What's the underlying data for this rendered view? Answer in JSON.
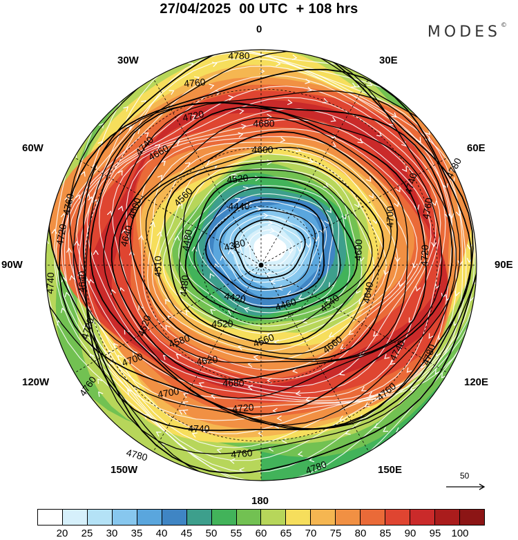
{
  "header": {
    "title": "27/04/2025  00 UTC  + 108 hrs",
    "brand": "MODES",
    "brand_mark": "©"
  },
  "map": {
    "projection": "north-polar-stereographic",
    "longitude_labels": {
      "lon_0": "0",
      "lon_30e": "30E",
      "lon_60e": "60E",
      "lon_90e": "90E",
      "lon_120e": "120E",
      "lon_150e": "150E",
      "lon_180": "180",
      "lon_150w": "150W",
      "lon_120w": "120W",
      "lon_90w": "90W",
      "lon_60w": "60W",
      "lon_30w": "30W"
    },
    "contour_labels": {
      "c4780_top": "4780",
      "c4760_top": "4760",
      "c4720_top": "4720",
      "c4740_tl": "4740",
      "c4680_top": "4680",
      "c4600_top": "4600",
      "c4660_tl": "4660",
      "c4560_tl": "4560",
      "c4520_top": "4520",
      "c4600_l": "4600",
      "c4640_l": "4640",
      "c4440_c": "4440",
      "c4480_l": "4480",
      "c4380_c": "4380",
      "c4760_l": "4760",
      "c4720_l": "4720",
      "c4740_l": "4740",
      "c4640_l2": "4640",
      "c4510_l": "4510",
      "c4480_l2": "4480",
      "c4420_c": "4420",
      "c4460_c": "4460",
      "c4720_ll": "4720",
      "c4620_l": "4620",
      "c4520_c": "4520",
      "c4540_c": "4540",
      "c4580_c": "4580",
      "c4560_c": "4560",
      "c4620_b": "4620",
      "c4700_b": "4700",
      "c4660_r": "4660",
      "c4760_ll": "4760",
      "c4680_b": "4680",
      "c4700_b2": "4700",
      "c4720_b": "4720",
      "c4740_b": "4740",
      "c4760_b": "4760",
      "c4780_bl": "4780",
      "c4780_b": "4780",
      "c4760_br": "4760",
      "c4740_r": "4740",
      "c4780_r": "4780",
      "c4640_r": "4640",
      "c4600_r": "4600",
      "c4700_r": "4700",
      "c4720_r": "4720",
      "c4760_r": "4760",
      "c4740_ur": "4740",
      "c4780_ur": "4780"
    },
    "pole_marker": "north-pole-dot"
  },
  "reference_vector": {
    "label": "50"
  },
  "colorbar": {
    "colors": [
      "#ffffff",
      "#d6f0fb",
      "#b4e2f6",
      "#87c7ee",
      "#5aa6dd",
      "#3f85c4",
      "#3d9f8c",
      "#42b35a",
      "#72c152",
      "#b7d65a",
      "#f6de5c",
      "#f5b651",
      "#f19043",
      "#ea6a38",
      "#df4531",
      "#ca2a2a",
      "#aa1c1c",
      "#8c1515"
    ],
    "labels": [
      "20",
      "25",
      "30",
      "35",
      "40",
      "45",
      "50",
      "55",
      "60",
      "65",
      "70",
      "75",
      "80",
      "85",
      "90",
      "95",
      "100"
    ]
  }
}
